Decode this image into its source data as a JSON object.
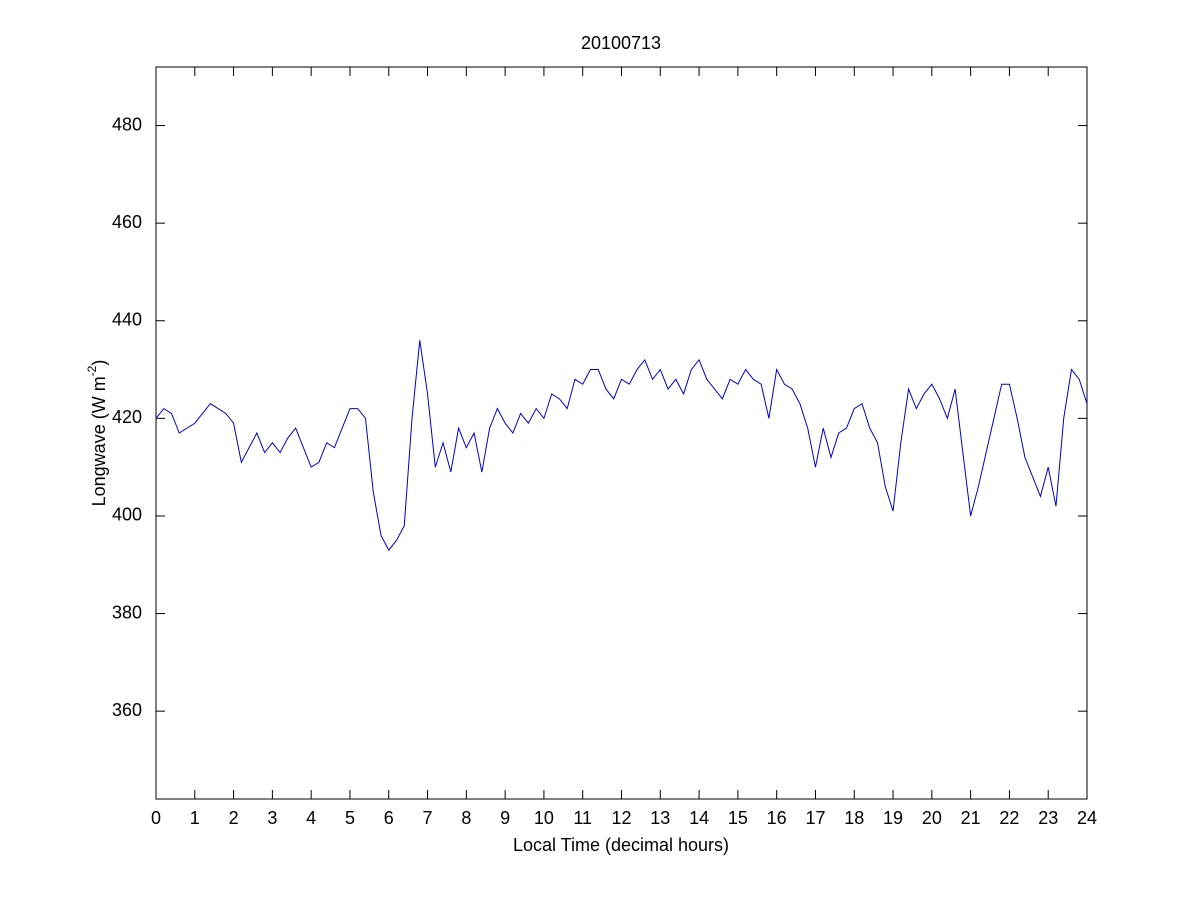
{
  "chart_data": {
    "type": "line",
    "title": "20100713",
    "xlabel": "Local Time (decimal hours)",
    "ylabel": {
      "text": "Longwave (W m",
      "superscript": "-2",
      "suffix": ")"
    },
    "xlim": [
      0,
      24
    ],
    "ylim": [
      342,
      492
    ],
    "xticks": [
      0,
      1,
      2,
      3,
      4,
      5,
      6,
      7,
      8,
      9,
      10,
      11,
      12,
      13,
      14,
      15,
      16,
      17,
      18,
      19,
      20,
      21,
      22,
      23,
      24
    ],
    "yticks": [
      360,
      380,
      400,
      420,
      440,
      460,
      480
    ],
    "grid": false,
    "series": [
      {
        "color": "#0000cc",
        "x": [
          0,
          0.2,
          0.4,
          0.6,
          0.8,
          1,
          1.2,
          1.4,
          1.6,
          1.8,
          2,
          2.2,
          2.4,
          2.6,
          2.8,
          3,
          3.2,
          3.4,
          3.6,
          3.8,
          4,
          4.2,
          4.4,
          4.6,
          4.8,
          5,
          5.2,
          5.4,
          5.6,
          5.8,
          6,
          6.2,
          6.4,
          6.6,
          6.8,
          7,
          7.2,
          7.4,
          7.6,
          7.8,
          8,
          8.2,
          8.4,
          8.6,
          8.8,
          9,
          9.2,
          9.4,
          9.6,
          9.8,
          10,
          10.2,
          10.4,
          10.6,
          10.8,
          11,
          11.2,
          11.4,
          11.6,
          11.8,
          12,
          12.2,
          12.4,
          12.6,
          12.8,
          13,
          13.2,
          13.4,
          13.6,
          13.8,
          14,
          14.2,
          14.4,
          14.6,
          14.8,
          15,
          15.2,
          15.4,
          15.6,
          15.8,
          16,
          16.2,
          16.4,
          16.6,
          16.8,
          17,
          17.2,
          17.4,
          17.6,
          17.8,
          18,
          18.2,
          18.4,
          18.6,
          18.8,
          19,
          19.2,
          19.4,
          19.6,
          19.8,
          20,
          20.2,
          20.4,
          20.6,
          20.8,
          21,
          21.2,
          21.4,
          21.6,
          21.8,
          22,
          22.2,
          22.4,
          22.6,
          22.8,
          23,
          23.2,
          23.4,
          23.6,
          23.8,
          24
        ],
        "values": [
          420,
          422,
          421,
          417,
          418,
          419,
          421,
          423,
          422,
          421,
          419,
          411,
          414,
          417,
          413,
          415,
          413,
          416,
          418,
          414,
          410,
          411,
          415,
          414,
          418,
          422,
          422,
          420,
          405,
          396,
          393,
          395,
          398,
          420,
          436,
          425,
          410,
          415,
          409,
          418,
          414,
          417,
          409,
          418,
          422,
          419,
          417,
          421,
          419,
          422,
          420,
          425,
          424,
          422,
          428,
          427,
          430,
          430,
          426,
          424,
          428,
          427,
          430,
          432,
          428,
          430,
          426,
          428,
          425,
          430,
          432,
          428,
          426,
          424,
          428,
          427,
          430,
          428,
          427,
          420,
          430,
          427,
          426,
          423,
          418,
          410,
          418,
          412,
          417,
          418,
          422,
          423,
          418,
          415,
          406,
          401,
          415,
          426,
          422,
          425,
          427,
          424,
          420,
          426,
          413,
          400,
          406,
          413,
          420,
          427,
          427,
          420,
          412,
          408,
          404,
          410,
          402,
          420,
          430,
          428,
          423
        ]
      }
    ]
  }
}
